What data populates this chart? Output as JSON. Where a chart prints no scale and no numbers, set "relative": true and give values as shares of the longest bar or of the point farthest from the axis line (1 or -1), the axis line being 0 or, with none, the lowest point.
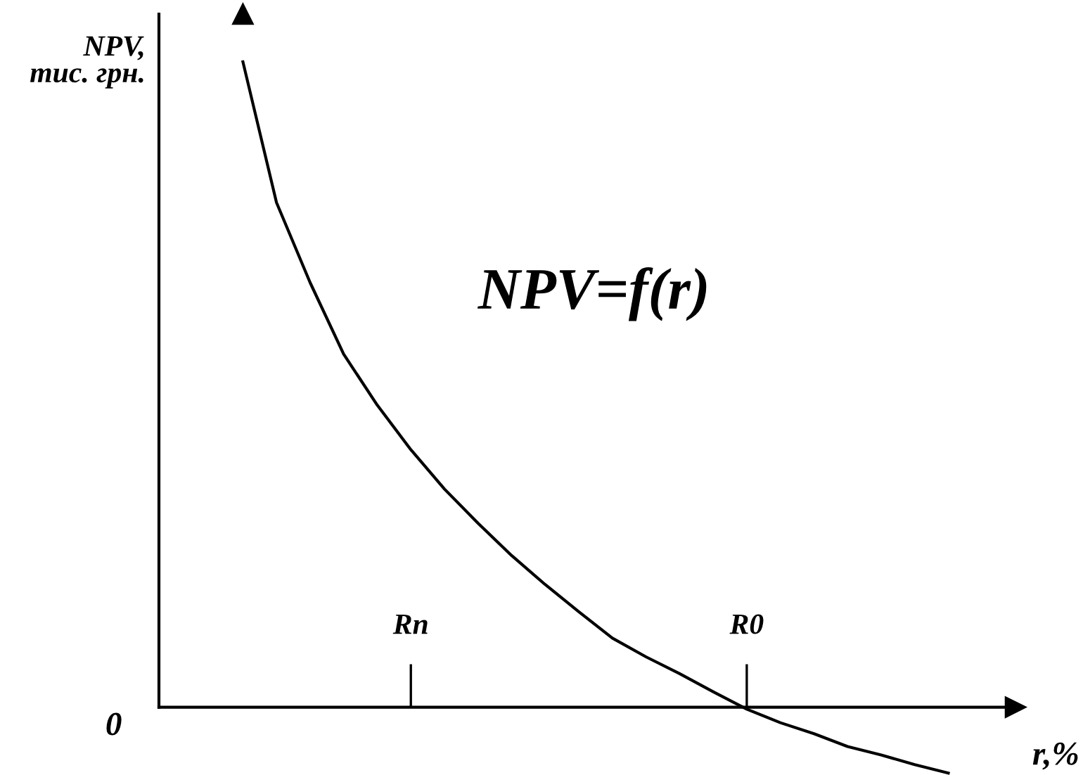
{
  "chart_data": {
    "type": "line",
    "relative": true,
    "xlabel": "r,%",
    "ylabel": "NPV,\nтис. грн.",
    "annotations": [
      "NPV=f(r)",
      "0"
    ],
    "categories": [
      null,
      null,
      null,
      null,
      null,
      "Rn",
      null,
      null,
      null,
      null,
      null,
      null,
      null,
      null,
      null,
      "R0",
      null,
      null,
      null,
      null,
      null,
      null
    ],
    "series": [
      {
        "color": "#000000",
        "values": [
          1.0,
          0.782,
          0.658,
          0.547,
          0.468,
          0.399,
          0.338,
          0.285,
          0.235,
          0.19,
          0.148,
          0.107,
          0.078,
          0.052,
          0.024,
          -0.003,
          -0.024,
          -0.041,
          -0.061,
          -0.074,
          -0.089,
          -0.102
        ]
      }
    ]
  }
}
